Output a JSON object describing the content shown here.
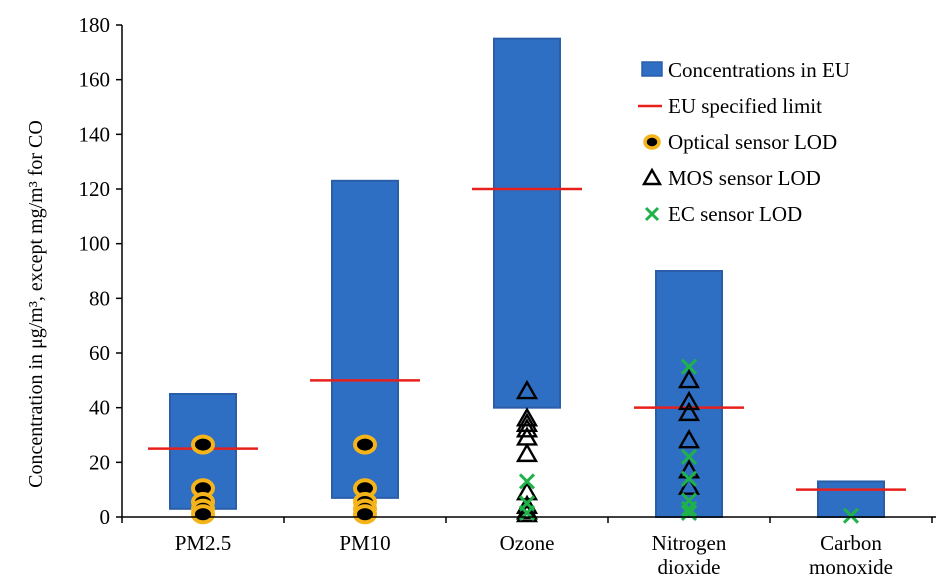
{
  "chart_data": {
    "type": "bar",
    "ylabel": "Concentration in μg/m³, except mg/m³ for CO",
    "ylim": [
      0,
      180
    ],
    "yticks": [
      0,
      20,
      40,
      60,
      80,
      100,
      120,
      140,
      160,
      180
    ],
    "grid": false,
    "legend_position": "top-right",
    "categories": [
      {
        "lines": [
          "PM2.5"
        ]
      },
      {
        "lines": [
          "PM10"
        ]
      },
      {
        "lines": [
          "Ozone"
        ]
      },
      {
        "lines": [
          "Nitrogen",
          "dioxide"
        ]
      },
      {
        "lines": [
          "Carbon",
          "monoxide"
        ]
      }
    ],
    "series": [
      {
        "name": "Concentrations in EU",
        "kind": "range-bar",
        "color": "#2e6fc4",
        "values": [
          [
            3,
            45
          ],
          [
            7,
            123
          ],
          [
            40,
            175
          ],
          [
            0,
            90
          ],
          [
            0,
            13
          ]
        ]
      },
      {
        "name": "EU specified limit",
        "kind": "limit-line",
        "color": "#e8201c",
        "values": [
          25,
          50,
          120,
          40,
          10
        ]
      },
      {
        "name": "Optical sensor LOD",
        "kind": "marker-circle",
        "color": "#f4b41a",
        "values": [
          [
            26.5,
            10.5,
            5.5,
            3,
            1
          ],
          [
            26.5,
            10.5,
            5.5,
            3,
            1
          ],
          [],
          [],
          []
        ]
      },
      {
        "name": "MOS sensor LOD",
        "kind": "marker-triangle",
        "color": "#000000",
        "values": [
          [],
          [],
          [
            46,
            36,
            34,
            32,
            29,
            23,
            9,
            4,
            2,
            1
          ],
          [
            50,
            42,
            38,
            28,
            17,
            11
          ],
          []
        ]
      },
      {
        "name": "EC sensor LOD",
        "kind": "marker-x",
        "color": "#1fb24a",
        "values": [
          [],
          [],
          [
            13,
            5,
            1.5
          ],
          [
            55,
            22,
            14,
            6,
            3,
            1.5
          ],
          [
            0.5
          ]
        ]
      }
    ]
  }
}
